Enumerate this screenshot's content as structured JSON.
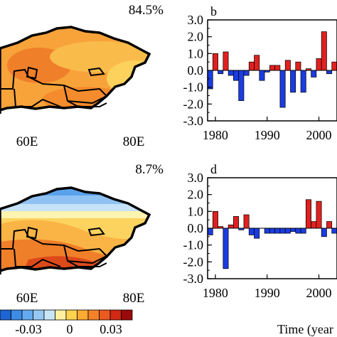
{
  "panels": [
    {
      "variance": "84.5%",
      "lon_ticks": [
        "60E",
        "80E"
      ]
    },
    {
      "variance": "8.7%",
      "lon_ticks": [
        "60E",
        "80E"
      ]
    }
  ],
  "colorbar": {
    "tick_labels": [
      "-0.03",
      "0",
      "0.03"
    ],
    "colors": [
      "#1e64d2",
      "#3c8ce6",
      "#64aaf0",
      "#96c8f5",
      "#c8e6fa",
      "#fff0a0",
      "#ffd250",
      "#ffaa32",
      "#f58228",
      "#eb5a1e",
      "#d22814",
      "#9b0a0a"
    ]
  },
  "chart_data": [
    {
      "type": "bar",
      "panel_label": "b",
      "x": [
        1979,
        1980,
        1981,
        1982,
        1983,
        1984,
        1985,
        1986,
        1987,
        1988,
        1989,
        1990,
        1991,
        1992,
        1993,
        1994,
        1995,
        1996,
        1997,
        1998,
        1999,
        2000,
        2001,
        2002,
        2003
      ],
      "values": [
        -1.1,
        1.0,
        -0.2,
        1.1,
        -0.3,
        -0.6,
        -1.8,
        -0.3,
        0.5,
        0.9,
        -0.6,
        -0.1,
        0.3,
        0.3,
        -2.2,
        0.6,
        -1.3,
        0.5,
        -1.3,
        0.1,
        -0.4,
        0.7,
        2.3,
        -0.2,
        0.5
      ],
      "positive_color": "#e02020",
      "negative_color": "#1a3ce0",
      "xlim": [
        1978.5,
        2003.5
      ],
      "ylim": [
        -3.0,
        3.0
      ],
      "yticks": [
        "3.0",
        "2.0",
        "1.0",
        "0.0",
        "-1.0",
        "-2.0",
        "-3.0"
      ],
      "xticks": [
        "1980",
        "1990",
        "2000"
      ],
      "xlabel": ""
    },
    {
      "type": "bar",
      "panel_label": "d",
      "x": [
        1979,
        1980,
        1981,
        1982,
        1983,
        1984,
        1985,
        1986,
        1987,
        1988,
        1989,
        1990,
        1991,
        1992,
        1993,
        1994,
        1995,
        1996,
        1997,
        1998,
        1999,
        2000,
        2001,
        2002,
        2003
      ],
      "values": [
        -0.4,
        1.0,
        0.1,
        -2.4,
        0.2,
        0.7,
        -0.1,
        0.8,
        -0.4,
        -0.6,
        0.0,
        -0.3,
        -0.3,
        -0.3,
        -0.3,
        -0.3,
        -0.2,
        -0.3,
        -0.3,
        1.7,
        0.4,
        1.6,
        -0.5,
        0.4,
        -0.3
      ],
      "positive_color": "#e02020",
      "negative_color": "#1a3ce0",
      "xlim": [
        1978.5,
        2003.5
      ],
      "ylim": [
        -3.0,
        3.0
      ],
      "yticks": [
        "3.0",
        "2.0",
        "1.0",
        "0.0",
        "-1.0",
        "-2.0",
        "-3.0"
      ],
      "xticks": [
        "1980",
        "1990",
        "2000"
      ],
      "xlabel": "Time (year"
    }
  ]
}
